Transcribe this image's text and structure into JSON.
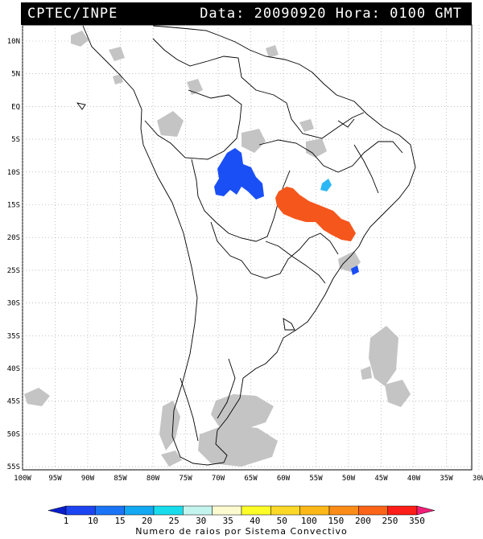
{
  "header": {
    "source": "CPTEC/INPE",
    "datetime": "Data: 20090920 Hora: 0100 GMT"
  },
  "map": {
    "lat_labels": [
      "10N",
      "5N",
      "EQ",
      "5S",
      "10S",
      "15S",
      "20S",
      "25S",
      "30S",
      "35S",
      "40S",
      "45S",
      "50S",
      "55S"
    ],
    "lat_values": [
      10,
      5,
      0,
      -5,
      -10,
      -15,
      -20,
      -25,
      -30,
      -35,
      -40,
      -45,
      -50,
      -55
    ],
    "lon_labels": [
      "100W",
      "95W",
      "90W",
      "85W",
      "80W",
      "75W",
      "70W",
      "65W",
      "60W",
      "55W",
      "50W",
      "45W",
      "40W",
      "35W",
      "30W"
    ],
    "lon_values": [
      -100,
      -95,
      -90,
      -85,
      -80,
      -75,
      -70,
      -65,
      -60,
      -55,
      -50,
      -45,
      -40,
      -35,
      -30
    ],
    "colors": {
      "cloud": "#c4c4c4",
      "blue_cell": "#1a4ff5",
      "cyan_cell": "#2bb7f5",
      "orange_cell": "#f5561c",
      "coast": "#000000"
    }
  },
  "legend": {
    "title": "Numero de raios por Sistema Convectivo",
    "labels": [
      "1",
      "10",
      "15",
      "20",
      "25",
      "30",
      "35",
      "40",
      "50",
      "100",
      "150",
      "200",
      "250",
      "350"
    ],
    "colors": [
      "#0a1ecc",
      "#1c44f0",
      "#1a74f5",
      "#12a8f2",
      "#18dcec",
      "#c4f4ee",
      "#fcfbd0",
      "#fcfc28",
      "#fcd828",
      "#fcb818",
      "#fc8c18",
      "#fc6418",
      "#fc1e18",
      "#f0207a"
    ]
  }
}
